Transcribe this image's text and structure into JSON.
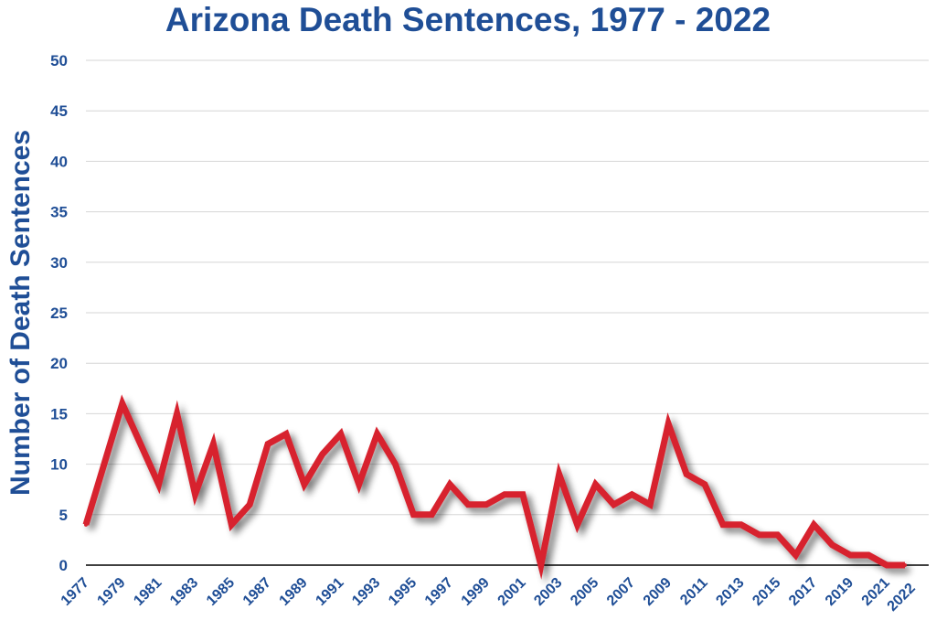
{
  "chart_data": {
    "type": "line",
    "title": "Arizona Death Sentences, 1977 - 2022",
    "xlabel": "",
    "ylabel": "Number of Death Sentences",
    "ylim": [
      0,
      50
    ],
    "yticks": [
      "0",
      "5",
      "10",
      "15",
      "20",
      "25",
      "30",
      "35",
      "40",
      "45",
      "50"
    ],
    "xtick_labels": [
      "1977",
      "1979",
      "1981",
      "1983",
      "1985",
      "1987",
      "1989",
      "1991",
      "1993",
      "1995",
      "1997",
      "1999",
      "2001",
      "2003",
      "2005",
      "2007",
      "2009",
      "2011",
      "2013",
      "2015",
      "2017",
      "2019",
      "2021",
      "2022"
    ],
    "grid": true,
    "legend": "none",
    "x": [
      1977,
      1978,
      1979,
      1980,
      1981,
      1982,
      1983,
      1984,
      1985,
      1986,
      1987,
      1988,
      1989,
      1990,
      1991,
      1992,
      1993,
      1994,
      1995,
      1996,
      1997,
      1998,
      1999,
      2000,
      2001,
      2002,
      2003,
      2004,
      2005,
      2006,
      2007,
      2008,
      2009,
      2010,
      2011,
      2012,
      2013,
      2014,
      2015,
      2016,
      2017,
      2018,
      2019,
      2020,
      2021,
      2022
    ],
    "series": [
      {
        "values": [
          4,
          10,
          16,
          12,
          8,
          15,
          7,
          12,
          4,
          6,
          12,
          13,
          8,
          11,
          13,
          8,
          13,
          10,
          5,
          5,
          8,
          6,
          6,
          7,
          7,
          0,
          9,
          4,
          8,
          6,
          7,
          6,
          14,
          9,
          8,
          4,
          4,
          3,
          3,
          1,
          4,
          2,
          1,
          1,
          0,
          0
        ],
        "color": "#d7232f"
      }
    ],
    "colors": {
      "title": "#1f4e96",
      "axis_text": "#1f4e96",
      "grid": "#d6d6d6",
      "axis_line": "#000000"
    }
  }
}
